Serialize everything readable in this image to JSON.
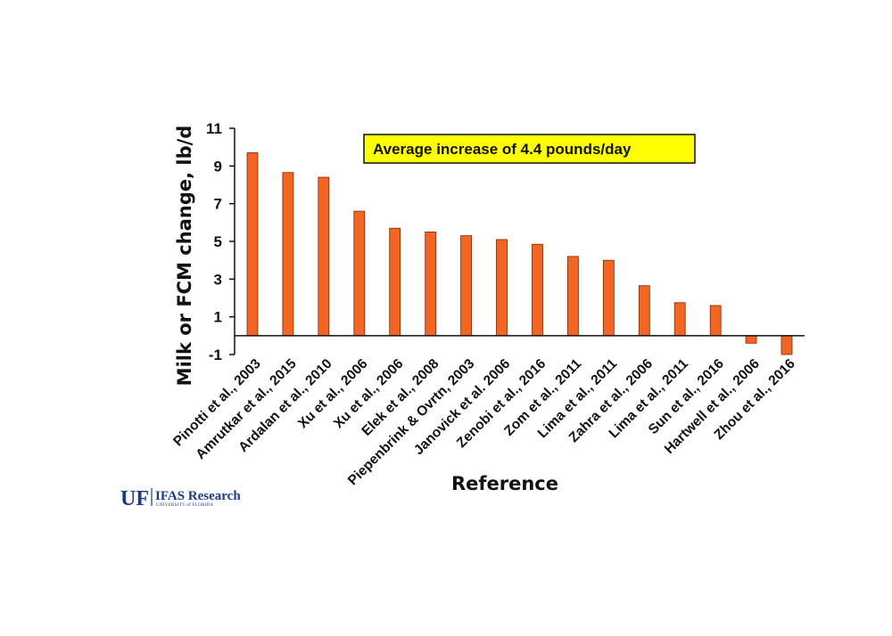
{
  "chart_data": {
    "type": "bar",
    "categories": [
      "Pinotti et al., 2003",
      "Amrutkar et al., 2015",
      "Ardalan et al., 2010",
      "Xu et al., 2006",
      "Xu et al., 2006",
      "Elek et al., 2008",
      "Piepenbrink & Ovrtn, 2003",
      "Janovick et al. 2006",
      "Zenobi et al., 2016",
      "Zom et al., 2011",
      "Lima et al., 2011",
      "Zahra et al., 2006",
      "Lima et al., 2011",
      "Sun et al., 2016",
      "Hartwell et al., 2006",
      "Zhou et al., 2016"
    ],
    "values": [
      9.7,
      8.65,
      8.4,
      6.6,
      5.7,
      5.5,
      5.3,
      5.1,
      4.85,
      4.2,
      4.0,
      2.65,
      1.75,
      1.6,
      -0.4,
      -1.0
    ],
    "title": "",
    "xlabel": "Reference",
    "ylabel": "Milk or FCM change, lb/d",
    "ylim": [
      -1,
      11
    ],
    "yticks": [
      -1,
      1,
      3,
      5,
      7,
      9,
      11
    ],
    "annotation": "Average increase of 4.4 pounds/day",
    "bar_color": "#f26522",
    "annotation_bg": "#ffff00",
    "grid": false,
    "legend": "none"
  },
  "logo": {
    "mark": "UF",
    "name": "IFAS Research",
    "subtitle": "UNIVERSITY of FLORIDA",
    "color": "#1b3a8c"
  }
}
